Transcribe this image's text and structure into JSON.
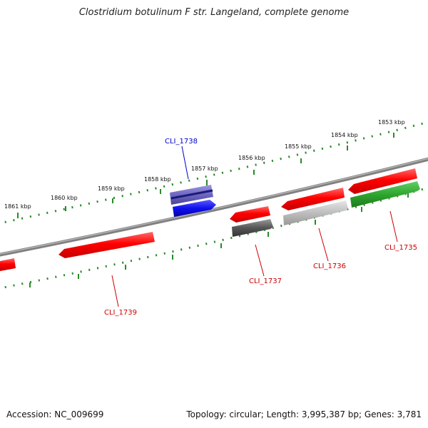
{
  "title": "Clostridium botulinum F str. Langeland, complete genome",
  "footer": {
    "accession": "Accession: NC_009699",
    "summary": "Topology: circular; Length: 3,995,387 bp; Genes: 3,781"
  },
  "colors": {
    "forward_gene": "#ff1a1a",
    "reverse_gene_gray": "#555555",
    "reverse_gene_light": "#bbbbbb",
    "green_gene": "#2fa52f",
    "blue_gene": "#1f1fe0",
    "purple_gene": "#7f78c8",
    "tick": "#2a8a2a",
    "backbone": "#888888",
    "label_red": "#cc0000",
    "label_blue": "#0000cc"
  },
  "scale_labels": [
    "1853 kbp",
    "1854 kbp",
    "1855 kbp",
    "1856 kbp",
    "1857 kbp",
    "1858 kbp",
    "1859 kbp",
    "1860 kbp",
    "1861 kbp"
  ],
  "gene_labels": [
    {
      "name": "CLI_1735",
      "color_key": "label_red"
    },
    {
      "name": "CLI_1736",
      "color_key": "label_red"
    },
    {
      "name": "CLI_1737",
      "color_key": "label_red"
    },
    {
      "name": "CLI_1738",
      "color_key": "label_blue"
    },
    {
      "name": "CLI_1739",
      "color_key": "label_red"
    }
  ]
}
